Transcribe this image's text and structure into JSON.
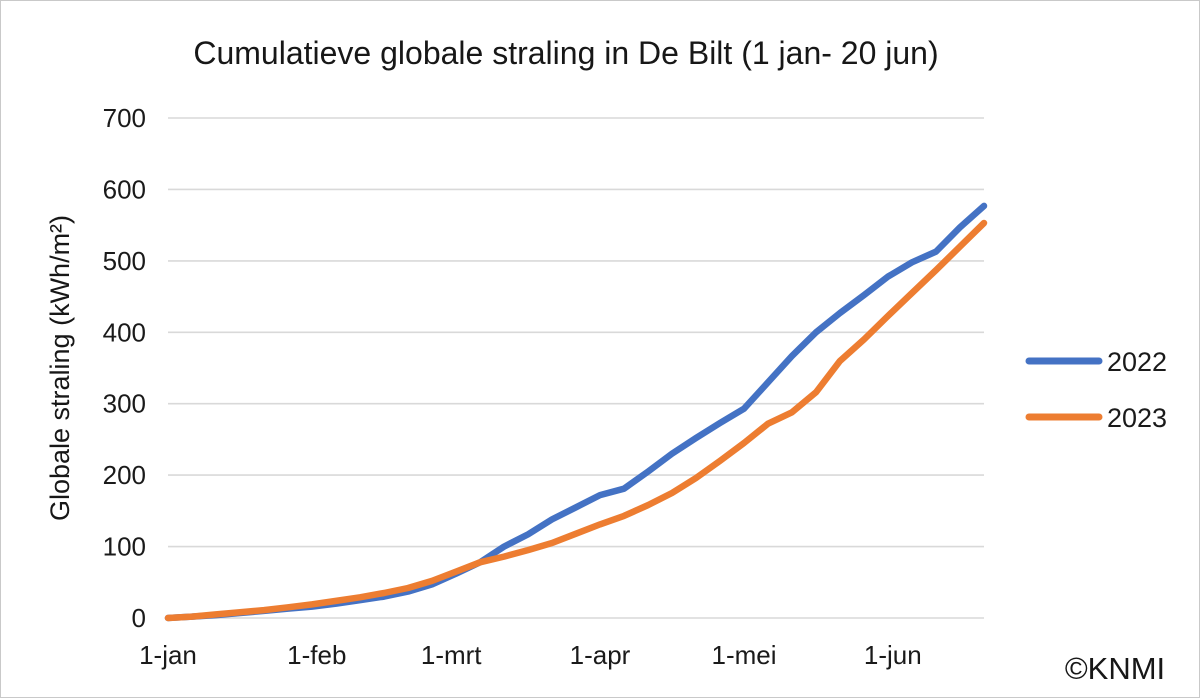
{
  "chart_data": {
    "type": "line",
    "title": "Cumulatieve globale straling in De Bilt (1 jan- 20 jun)",
    "ylabel": "Globale straling (kWh/m²)",
    "xlabel": "",
    "credit": "©KNMI",
    "x_unit": "days since 1 January",
    "x_range": [
      0,
      170
    ],
    "ylim": [
      0,
      700
    ],
    "grid": "horizontal",
    "gridline_color": "#d9d9d9",
    "text_color": "#1a1a1a",
    "legend_position": "right",
    "yticks": [
      0,
      100,
      200,
      300,
      400,
      500,
      600,
      700
    ],
    "xticks": [
      {
        "label": "1-jan",
        "day": 0
      },
      {
        "label": "1-feb",
        "day": 31
      },
      {
        "label": "1-mrt",
        "day": 59
      },
      {
        "label": "1-apr",
        "day": 90
      },
      {
        "label": "1-mei",
        "day": 120
      },
      {
        "label": "1-jun",
        "day": 151
      }
    ],
    "series": [
      {
        "name": "2022",
        "color": "#4472c4",
        "points": [
          [
            0,
            0
          ],
          [
            5,
            2
          ],
          [
            10,
            4
          ],
          [
            15,
            7
          ],
          [
            20,
            10
          ],
          [
            25,
            13
          ],
          [
            30,
            16
          ],
          [
            35,
            20
          ],
          [
            40,
            25
          ],
          [
            45,
            30
          ],
          [
            50,
            37
          ],
          [
            55,
            47
          ],
          [
            60,
            62
          ],
          [
            65,
            78
          ],
          [
            70,
            100
          ],
          [
            75,
            117
          ],
          [
            80,
            138
          ],
          [
            85,
            155
          ],
          [
            90,
            172
          ],
          [
            95,
            181
          ],
          [
            100,
            205
          ],
          [
            105,
            230
          ],
          [
            110,
            252
          ],
          [
            115,
            273
          ],
          [
            120,
            293
          ],
          [
            125,
            330
          ],
          [
            130,
            367
          ],
          [
            135,
            400
          ],
          [
            140,
            427
          ],
          [
            145,
            452
          ],
          [
            150,
            478
          ],
          [
            155,
            498
          ],
          [
            160,
            513
          ],
          [
            165,
            547
          ],
          [
            170,
            577
          ]
        ]
      },
      {
        "name": "2023",
        "color": "#ed7d31",
        "points": [
          [
            0,
            0
          ],
          [
            5,
            2
          ],
          [
            10,
            5
          ],
          [
            15,
            8
          ],
          [
            20,
            11
          ],
          [
            25,
            15
          ],
          [
            30,
            19
          ],
          [
            35,
            24
          ],
          [
            40,
            29
          ],
          [
            45,
            35
          ],
          [
            50,
            42
          ],
          [
            55,
            52
          ],
          [
            60,
            65
          ],
          [
            65,
            78
          ],
          [
            70,
            86
          ],
          [
            75,
            95
          ],
          [
            80,
            105
          ],
          [
            85,
            118
          ],
          [
            90,
            131
          ],
          [
            95,
            143
          ],
          [
            100,
            158
          ],
          [
            105,
            175
          ],
          [
            110,
            196
          ],
          [
            115,
            220
          ],
          [
            120,
            245
          ],
          [
            125,
            272
          ],
          [
            130,
            288
          ],
          [
            135,
            316
          ],
          [
            140,
            360
          ],
          [
            145,
            390
          ],
          [
            150,
            423
          ],
          [
            155,
            455
          ],
          [
            160,
            487
          ],
          [
            165,
            520
          ],
          [
            170,
            553
          ]
        ]
      }
    ]
  }
}
